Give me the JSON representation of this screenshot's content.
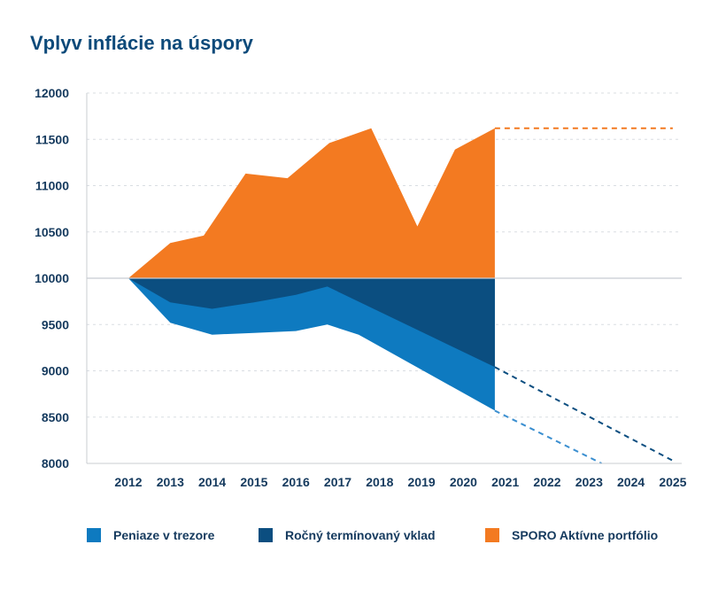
{
  "chart_data": {
    "type": "area",
    "title": "Vplyv inflácie na úspory",
    "xlabel": "",
    "ylabel": "",
    "x": [
      "2012",
      "2013",
      "2014",
      "2015",
      "2016",
      "2017",
      "2018",
      "2019",
      "2020",
      "2021",
      "2022",
      "2023",
      "2024",
      "2025"
    ],
    "ylim": [
      8000,
      12000
    ],
    "yticks": [
      8000,
      8500,
      9000,
      9500,
      10000,
      10500,
      11000,
      11500,
      12000
    ],
    "grid": true,
    "baseline": 10000,
    "series": [
      {
        "name": "Peniaze v trezore",
        "color": "#0e7ac0",
        "points": [
          [
            2012,
            10000
          ],
          [
            2013,
            9520
          ],
          [
            2014,
            9390
          ],
          [
            2015,
            9410
          ],
          [
            2016,
            9430
          ],
          [
            2016.75,
            9500
          ],
          [
            2017.5,
            9390
          ],
          [
            2020.75,
            8570
          ]
        ],
        "projection": [
          [
            2020.75,
            8570
          ],
          [
            2023.3,
            8000
          ]
        ]
      },
      {
        "name": "Ročný termínovaný vklad",
        "color": "#0b4e80",
        "points": [
          [
            2012,
            10000
          ],
          [
            2013,
            9740
          ],
          [
            2014,
            9670
          ],
          [
            2015,
            9740
          ],
          [
            2016,
            9820
          ],
          [
            2016.75,
            9910
          ],
          [
            2020.75,
            9040
          ]
        ],
        "projection": [
          [
            2020.75,
            9040
          ],
          [
            2025,
            8030
          ]
        ]
      },
      {
        "name": "SPORO Aktívne portfólio",
        "color": "#f37a21",
        "points": [
          [
            2012,
            10000
          ],
          [
            2013,
            10380
          ],
          [
            2013.8,
            10460
          ],
          [
            2014.8,
            11130
          ],
          [
            2015.8,
            11080
          ],
          [
            2016.8,
            11460
          ],
          [
            2017.8,
            11620
          ],
          [
            2018.9,
            10560
          ],
          [
            2019.8,
            11390
          ],
          [
            2020.75,
            11620
          ]
        ],
        "projection": [
          [
            2020.75,
            11620
          ],
          [
            2025,
            11620
          ]
        ]
      }
    ]
  }
}
